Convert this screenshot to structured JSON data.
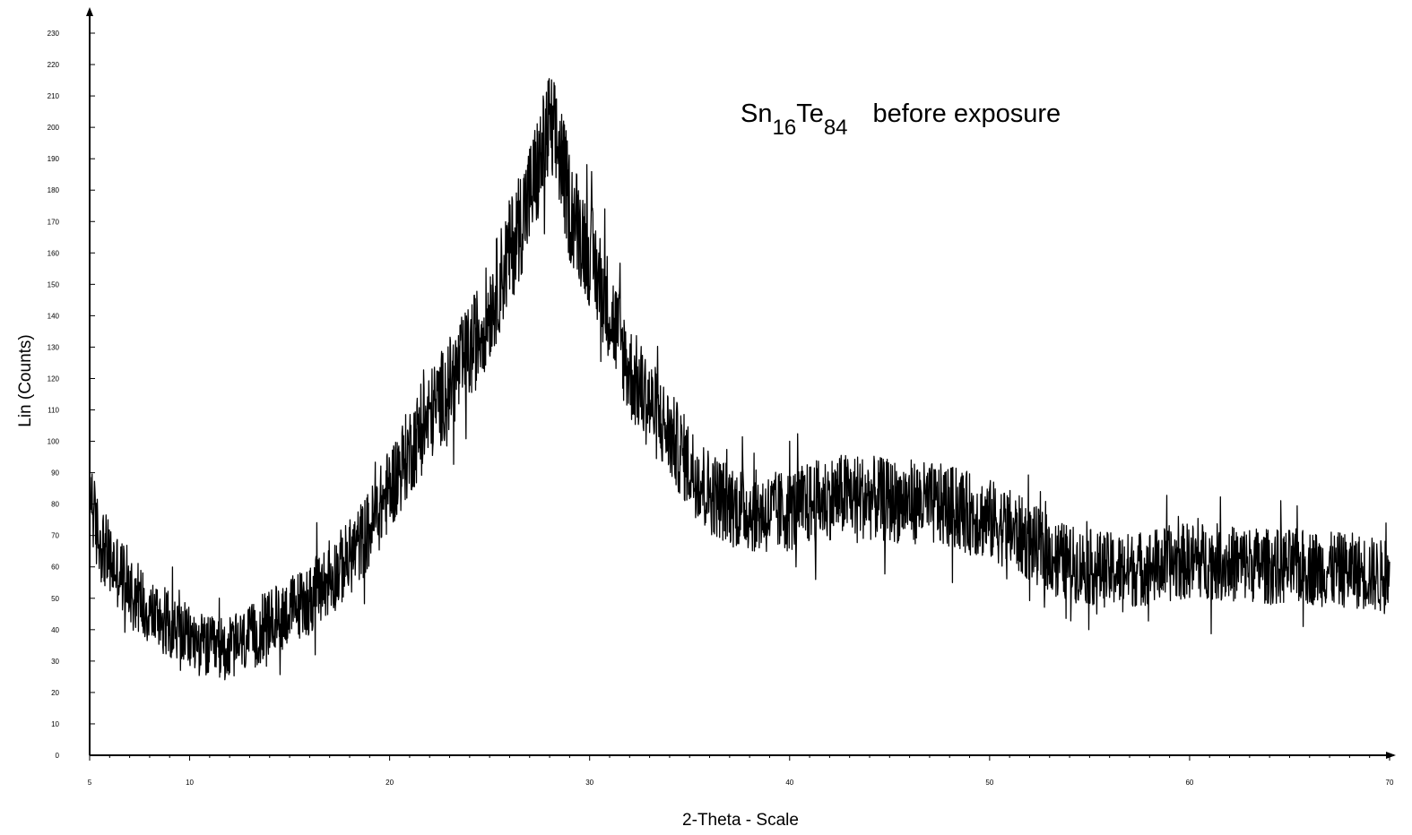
{
  "chart_data": {
    "type": "line",
    "xlabel": "2-Theta - Scale",
    "ylabel": "Lin (Counts)",
    "xlim": [
      5,
      70
    ],
    "ylim": [
      0,
      230
    ],
    "x_ticks": [
      5,
      10,
      20,
      30,
      40,
      50,
      60,
      70
    ],
    "y_ticks": [
      0,
      10,
      20,
      30,
      40,
      50,
      60,
      70,
      80,
      90,
      100,
      110,
      120,
      130,
      140,
      150,
      160,
      170,
      180,
      190,
      200,
      210,
      220,
      230
    ],
    "grid": false,
    "line_color": "#000000",
    "annotation": {
      "main": "Sn",
      "sub1": "16",
      "mid": "Te",
      "sub2": "84",
      "suffix": "before exposure"
    },
    "series": [
      {
        "x": [
          5,
          5.3,
          5.7,
          6,
          7,
          8,
          9,
          10,
          11,
          12,
          13,
          14,
          15,
          16,
          17,
          18,
          19,
          20,
          21,
          22,
          23,
          24,
          25,
          26,
          27,
          27.5,
          28,
          28.5,
          29,
          30,
          31,
          32,
          33,
          34,
          35,
          36,
          37,
          38,
          39,
          40,
          41,
          42,
          43,
          44,
          45,
          46,
          47,
          48,
          49,
          50,
          51,
          52,
          53,
          54,
          55,
          56,
          57,
          58,
          59,
          60,
          61,
          62,
          63,
          64,
          65,
          66,
          67,
          68,
          69,
          70
        ],
        "y": [
          88,
          72,
          66,
          62,
          54,
          46,
          42,
          37,
          34,
          34,
          37,
          42,
          46,
          50,
          56,
          63,
          72,
          85,
          97,
          108,
          118,
          128,
          142,
          160,
          178,
          188,
          200,
          192,
          175,
          160,
          142,
          122,
          112,
          102,
          92,
          84,
          80,
          78,
          77,
          78,
          80,
          82,
          83,
          82,
          81,
          81,
          80,
          79,
          77,
          75,
          72,
          68,
          64,
          61,
          60,
          59,
          59,
          60,
          61,
          62,
          62,
          61,
          61,
          60,
          60,
          60,
          59,
          59,
          58,
          56
        ]
      }
    ]
  }
}
